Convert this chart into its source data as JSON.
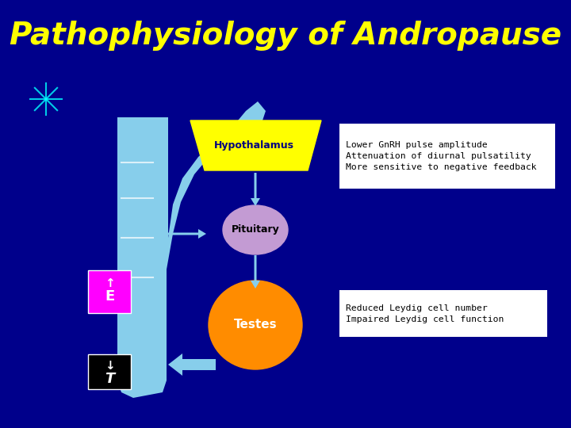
{
  "title": "Pathophysiology of Andropause",
  "title_color": "#FFFF00",
  "title_fontsize": 28,
  "bg_color": "#00008B",
  "hypothalamus_label": "Hypothalamus",
  "hypothalamus_color": "#FFFF00",
  "pituitary_label": "Pituitary",
  "pituitary_color": "#C39BD3",
  "testes_label": "Testes",
  "testes_color": "#FF8C00",
  "feedback_color": "#87CEEB",
  "box1_text": "Lower GnRH pulse amplitude\nAttenuation of diurnal pulsatility\nMore sensitive to negative feedback",
  "box2_text": "Reduced Leydig cell number\nImpaired Leydig cell function",
  "box_bg": "#FFFFFF",
  "box_text_color": "#000000",
  "label_color": "#000080",
  "e_box_color": "#FF00FF",
  "t_box_color": "#000000",
  "e_label": "E",
  "t_label": "T",
  "arrow_color": "#87CEEB",
  "white_color": "#FFFFFF"
}
